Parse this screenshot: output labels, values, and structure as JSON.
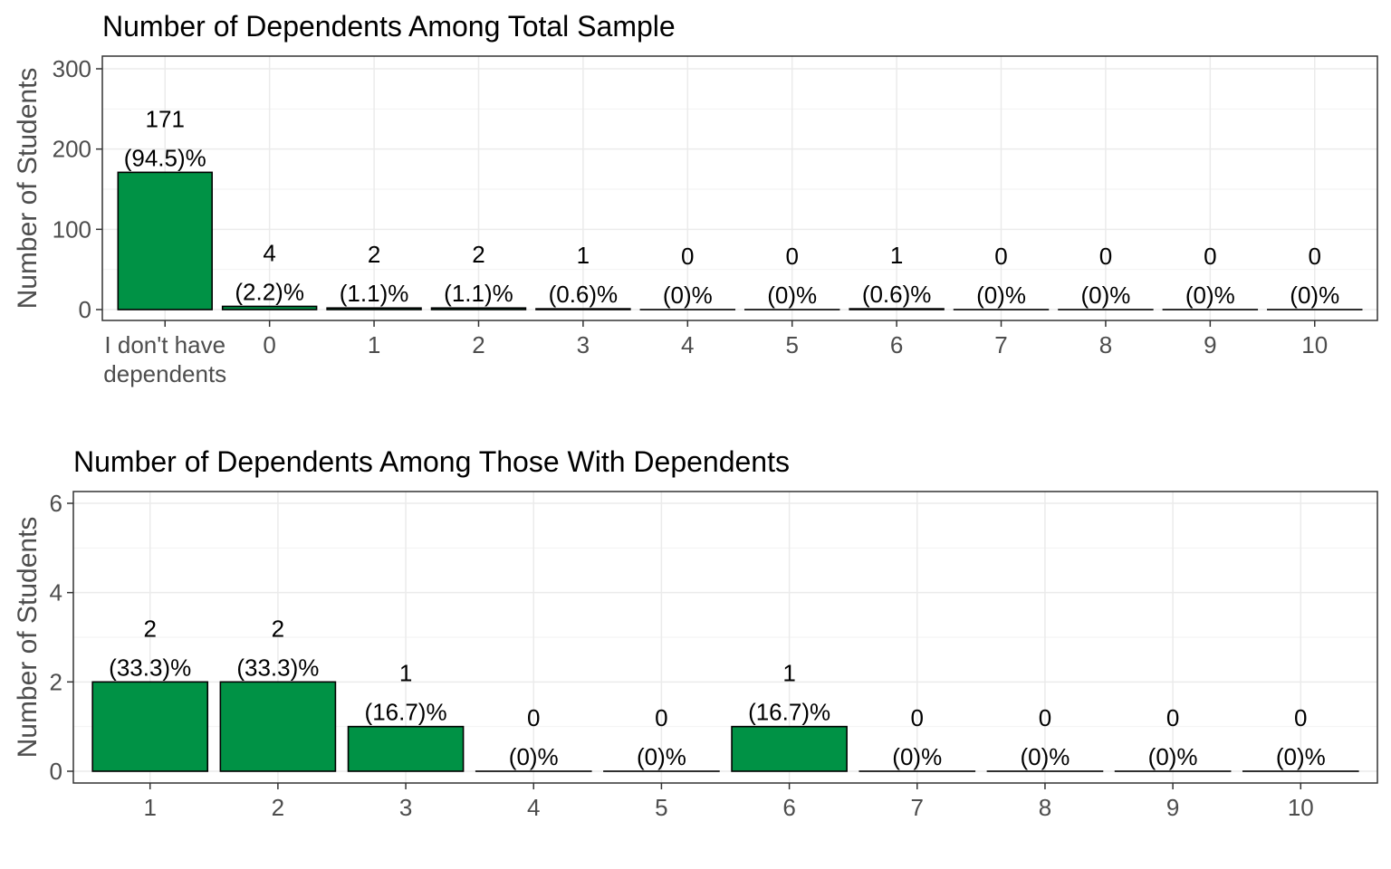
{
  "chart_data": [
    {
      "type": "bar",
      "title": "Number of Dependents Among Total Sample",
      "xlabel": "",
      "ylabel": "Number of Students",
      "ylim": [
        0,
        300
      ],
      "yticks": [
        "0",
        "100",
        "200",
        "300"
      ],
      "categories": [
        [
          "I don't have",
          "dependents"
        ],
        [
          "0"
        ],
        [
          "1"
        ],
        [
          "2"
        ],
        [
          "3"
        ],
        [
          "4"
        ],
        [
          "5"
        ],
        [
          "6"
        ],
        [
          "7"
        ],
        [
          "8"
        ],
        [
          "9"
        ],
        [
          "10"
        ]
      ],
      "values": [
        171,
        4,
        2,
        2,
        1,
        0,
        0,
        1,
        0,
        0,
        0,
        0
      ],
      "count_labels": [
        "171",
        "4",
        "2",
        "2",
        "1",
        "0",
        "0",
        "1",
        "0",
        "0",
        "0",
        "0"
      ],
      "percent_labels": [
        "(94.5)%",
        "(2.2)%",
        "(1.1)%",
        "(1.1)%",
        "(0.6)%",
        "(0)%",
        "(0)%",
        "(0.6)%",
        "(0)%",
        "(0)%",
        "(0)%",
        "(0)%"
      ],
      "bar_color": "#009245",
      "grid": true
    },
    {
      "type": "bar",
      "title": "Number of Dependents Among Those With Dependents",
      "xlabel": "",
      "ylabel": "Number of Students",
      "ylim": [
        0,
        6
      ],
      "yticks": [
        "0",
        "2",
        "4",
        "6"
      ],
      "categories": [
        [
          "1"
        ],
        [
          "2"
        ],
        [
          "3"
        ],
        [
          "4"
        ],
        [
          "5"
        ],
        [
          "6"
        ],
        [
          "7"
        ],
        [
          "8"
        ],
        [
          "9"
        ],
        [
          "10"
        ]
      ],
      "values": [
        2,
        2,
        1,
        0,
        0,
        1,
        0,
        0,
        0,
        0
      ],
      "count_labels": [
        "2",
        "2",
        "1",
        "0",
        "0",
        "1",
        "0",
        "0",
        "0",
        "0"
      ],
      "percent_labels": [
        "(33.3)%",
        "(33.3)%",
        "(16.7)%",
        "(0)%",
        "(0)%",
        "(16.7)%",
        "(0)%",
        "(0)%",
        "(0)%",
        "(0)%"
      ],
      "bar_color": "#009245",
      "grid": true
    }
  ]
}
